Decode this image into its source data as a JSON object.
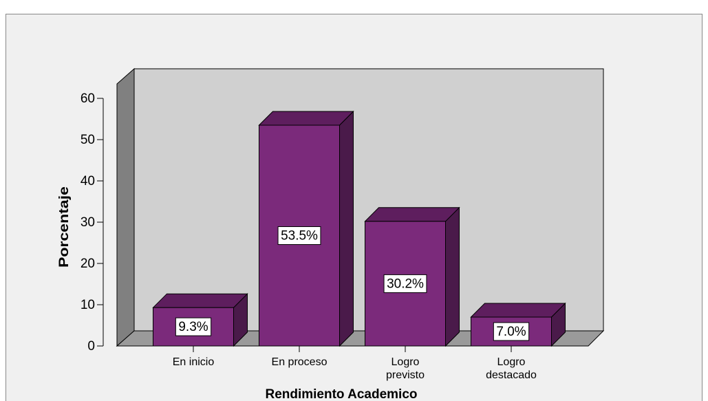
{
  "chart_data": {
    "type": "bar3d",
    "x_label": "Rendimiento Academico",
    "y_label": "Porcentaje",
    "categories": [
      "En inicio",
      "En proceso",
      "Logro previsto",
      "Logro destacado"
    ],
    "values": [
      9.3,
      53.5,
      30.2,
      7.0
    ],
    "value_labels": [
      "9.3%",
      "53.5%",
      "30.2%",
      "7.0%"
    ],
    "color": "#7b2a7b",
    "ylim": [
      0,
      60
    ],
    "yticks": [
      0,
      10,
      20,
      30,
      40,
      50,
      60
    ]
  }
}
